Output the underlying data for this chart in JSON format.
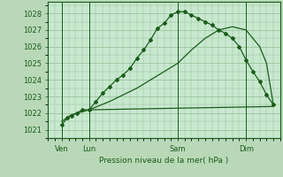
{
  "bg_color": "#b8d8b8",
  "plot_bg_color": "#c8e8d0",
  "grid_color": "#90c090",
  "line_color": "#1a5c1a",
  "title": "Pression niveau de la mer( hPa )",
  "ylim": [
    1020.5,
    1028.7
  ],
  "yticks": [
    1021,
    1022,
    1023,
    1024,
    1025,
    1026,
    1027,
    1028
  ],
  "xlim": [
    -0.5,
    16.5
  ],
  "xtick_positions": [
    0.5,
    2.5,
    9.0,
    14.0
  ],
  "xtick_labels": [
    "Ven",
    "Lun",
    "Sam",
    "Dim"
  ],
  "vline_positions": [
    0.5,
    2.5,
    9.0,
    14.0
  ],
  "series1_x": [
    0.5,
    0.9,
    1.2,
    1.6,
    2.0,
    2.5,
    3.0,
    3.5,
    4.0,
    4.5,
    5.0,
    5.5,
    6.0,
    6.5,
    7.0,
    7.5,
    8.0,
    8.5,
    9.0,
    9.5,
    10.0,
    10.5,
    11.0,
    11.5,
    12.0,
    12.5,
    13.0,
    13.5,
    14.0,
    14.5,
    15.0,
    15.5,
    16.0
  ],
  "series1": [
    1021.3,
    1021.7,
    1021.85,
    1022.0,
    1022.2,
    1022.2,
    1022.7,
    1023.2,
    1023.6,
    1024.0,
    1024.3,
    1024.7,
    1025.3,
    1025.8,
    1026.4,
    1027.1,
    1027.4,
    1027.9,
    1028.1,
    1028.1,
    1027.9,
    1027.7,
    1027.5,
    1027.3,
    1027.0,
    1026.8,
    1026.5,
    1026.0,
    1025.2,
    1024.5,
    1023.9,
    1023.1,
    1022.5
  ],
  "series2_x": [
    0.5,
    1.2,
    2.5,
    4.0,
    6.0,
    8.0,
    9.0,
    10.0,
    11.0,
    12.0,
    13.0,
    14.0,
    15.0,
    15.5,
    16.0
  ],
  "series2": [
    1021.5,
    1021.9,
    1022.2,
    1022.7,
    1023.5,
    1024.5,
    1025.0,
    1025.8,
    1026.5,
    1027.0,
    1027.2,
    1027.0,
    1026.0,
    1025.0,
    1022.5
  ],
  "series3_x": [
    2.5,
    16.0
  ],
  "series3": [
    1022.2,
    1022.4
  ]
}
